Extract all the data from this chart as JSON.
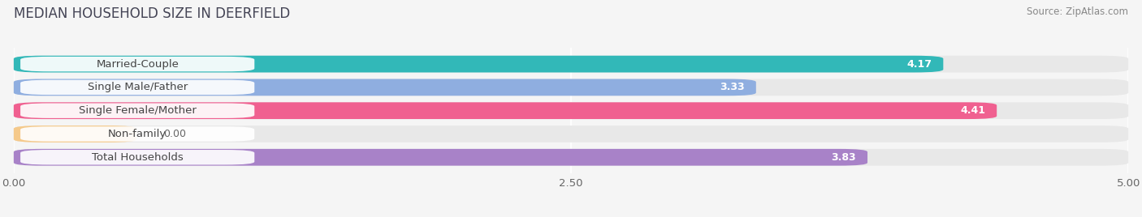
{
  "title": "MEDIAN HOUSEHOLD SIZE IN DEERFIELD",
  "source": "Source: ZipAtlas.com",
  "categories": [
    "Married-Couple",
    "Single Male/Father",
    "Single Female/Mother",
    "Non-family",
    "Total Households"
  ],
  "values": [
    4.17,
    3.33,
    4.41,
    0.0,
    3.83
  ],
  "bar_colors": [
    "#32b8b8",
    "#8faee0",
    "#f06090",
    "#f5c98a",
    "#a882c8"
  ],
  "xlim": [
    0,
    5.0
  ],
  "xticks": [
    0.0,
    2.5,
    5.0
  ],
  "xtick_labels": [
    "0.00",
    "2.50",
    "5.00"
  ],
  "bar_height": 0.72,
  "background_color": "#f5f5f5",
  "bar_background_color": "#e8e8e8",
  "label_fontsize": 9.5,
  "value_fontsize": 9,
  "title_fontsize": 12,
  "source_fontsize": 8.5,
  "nonfamily_bar_width": 0.55
}
